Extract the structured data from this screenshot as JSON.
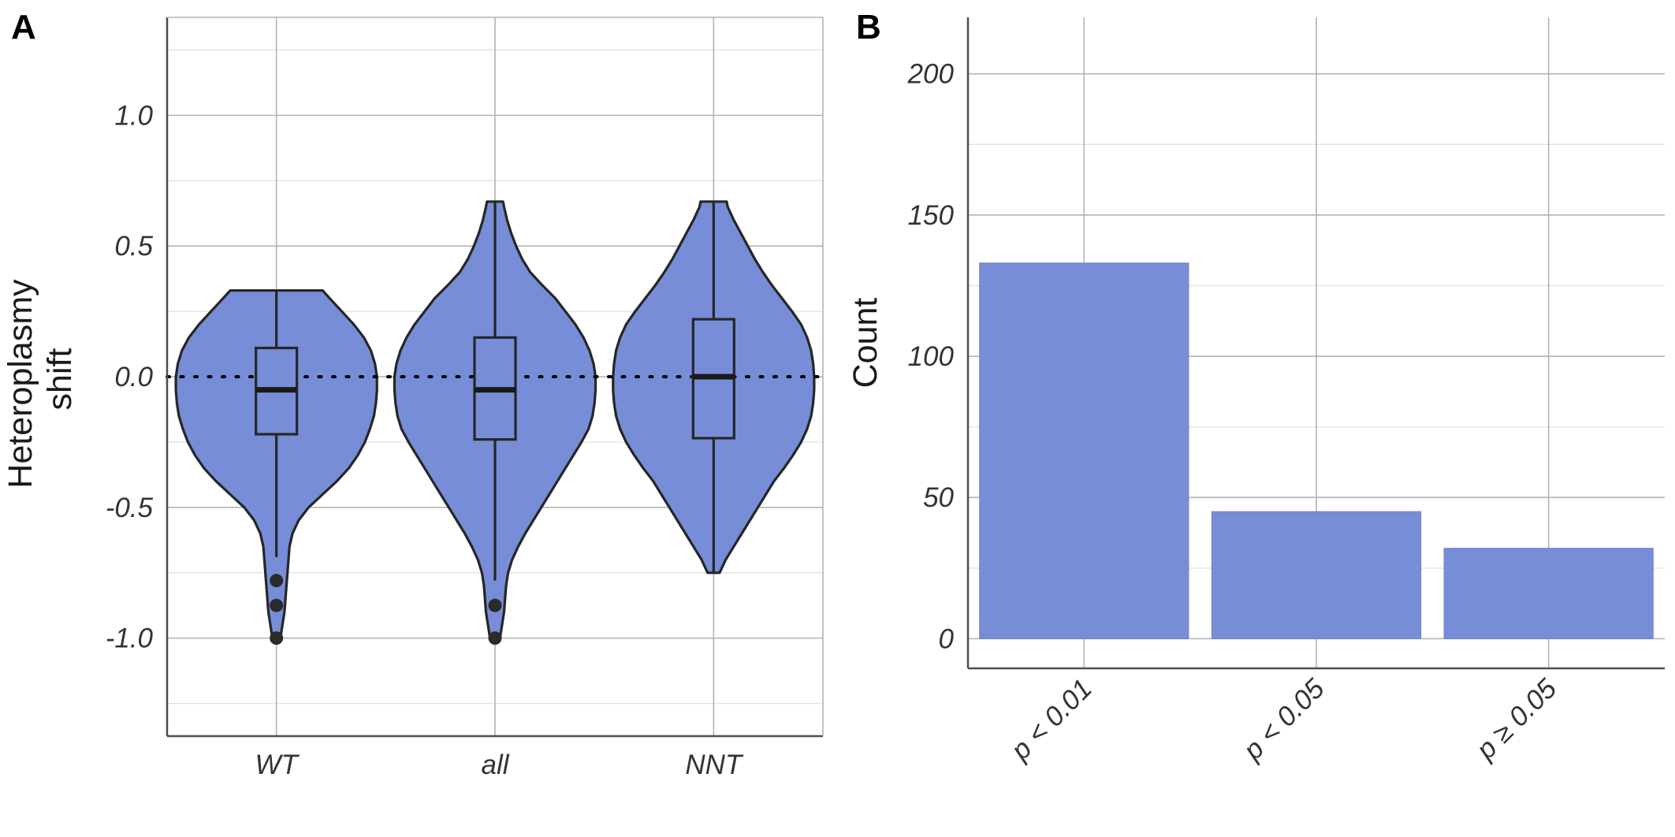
{
  "panels": {
    "a": "A",
    "b": "B"
  },
  "colors": {
    "fill": "#778dd7",
    "outline": "#262626"
  },
  "chart_data": [
    {
      "type": "violin",
      "ylabel_line1": "Heteroplasmy",
      "ylabel_line2": "shift",
      "xlabel": "",
      "categories": [
        "WT",
        "all",
        "NNT"
      ],
      "ylim": [
        -1.375,
        1.375
      ],
      "yticks": [
        -1.0,
        -0.5,
        0.0,
        0.5,
        1.0
      ],
      "ytick_labels": [
        "-1.0",
        "-0.5",
        "0.0",
        "0.5",
        "1.0"
      ],
      "reference_line": 0.0,
      "grid": true,
      "boxes": [
        {
          "name": "WT",
          "q1": -0.22,
          "median": -0.05,
          "q3": 0.11,
          "whisker_low": -0.69,
          "whisker_high": 0.33,
          "outliers": [
            -0.78,
            -0.875,
            -1.0
          ]
        },
        {
          "name": "all",
          "q1": -0.24,
          "median": -0.05,
          "q3": 0.15,
          "whisker_low": -0.78,
          "whisker_high": 0.67,
          "outliers": [
            -0.875,
            -1.0
          ]
        },
        {
          "name": "NNT",
          "q1": -0.235,
          "median": 0.0,
          "q3": 0.22,
          "whisker_low": -0.75,
          "whisker_high": 0.67,
          "outliers": []
        }
      ],
      "violins": [
        {
          "name": "WT",
          "profile": [
            [
              -1.0,
              0.04
            ],
            [
              -0.95,
              0.06
            ],
            [
              -0.9,
              0.08
            ],
            [
              -0.85,
              0.09
            ],
            [
              -0.8,
              0.1
            ],
            [
              -0.75,
              0.11
            ],
            [
              -0.7,
              0.12
            ],
            [
              -0.65,
              0.13
            ],
            [
              -0.6,
              0.16
            ],
            [
              -0.55,
              0.22
            ],
            [
              -0.5,
              0.32
            ],
            [
              -0.45,
              0.46
            ],
            [
              -0.4,
              0.6
            ],
            [
              -0.35,
              0.72
            ],
            [
              -0.3,
              0.81
            ],
            [
              -0.25,
              0.88
            ],
            [
              -0.2,
              0.93
            ],
            [
              -0.15,
              0.97
            ],
            [
              -0.1,
              0.99
            ],
            [
              -0.05,
              1.0
            ],
            [
              0.0,
              1.0
            ],
            [
              0.05,
              0.98
            ],
            [
              0.1,
              0.94
            ],
            [
              0.15,
              0.87
            ],
            [
              0.2,
              0.77
            ],
            [
              0.25,
              0.65
            ],
            [
              0.3,
              0.53
            ],
            [
              0.33,
              0.46
            ]
          ]
        },
        {
          "name": "all",
          "profile": [
            [
              -1.0,
              0.05
            ],
            [
              -0.95,
              0.07
            ],
            [
              -0.9,
              0.09
            ],
            [
              -0.85,
              0.1
            ],
            [
              -0.8,
              0.11
            ],
            [
              -0.75,
              0.13
            ],
            [
              -0.7,
              0.17
            ],
            [
              -0.65,
              0.23
            ],
            [
              -0.6,
              0.3
            ],
            [
              -0.55,
              0.38
            ],
            [
              -0.5,
              0.46
            ],
            [
              -0.45,
              0.54
            ],
            [
              -0.4,
              0.62
            ],
            [
              -0.35,
              0.7
            ],
            [
              -0.3,
              0.78
            ],
            [
              -0.25,
              0.86
            ],
            [
              -0.2,
              0.93
            ],
            [
              -0.15,
              0.97
            ],
            [
              -0.1,
              0.99
            ],
            [
              -0.05,
              1.0
            ],
            [
              0.0,
              1.0
            ],
            [
              0.05,
              0.98
            ],
            [
              0.1,
              0.94
            ],
            [
              0.15,
              0.88
            ],
            [
              0.2,
              0.8
            ],
            [
              0.25,
              0.7
            ],
            [
              0.3,
              0.6
            ],
            [
              0.35,
              0.47
            ],
            [
              0.4,
              0.35
            ],
            [
              0.45,
              0.27
            ],
            [
              0.5,
              0.21
            ],
            [
              0.55,
              0.16
            ],
            [
              0.6,
              0.12
            ],
            [
              0.65,
              0.09
            ],
            [
              0.67,
              0.08
            ]
          ]
        },
        {
          "name": "NNT",
          "profile": [
            [
              -0.75,
              0.06
            ],
            [
              -0.7,
              0.12
            ],
            [
              -0.65,
              0.2
            ],
            [
              -0.6,
              0.28
            ],
            [
              -0.55,
              0.36
            ],
            [
              -0.5,
              0.44
            ],
            [
              -0.45,
              0.52
            ],
            [
              -0.4,
              0.6
            ],
            [
              -0.35,
              0.7
            ],
            [
              -0.3,
              0.79
            ],
            [
              -0.25,
              0.87
            ],
            [
              -0.2,
              0.93
            ],
            [
              -0.15,
              0.97
            ],
            [
              -0.1,
              0.99
            ],
            [
              -0.05,
              1.0
            ],
            [
              0.0,
              1.0
            ],
            [
              0.05,
              0.99
            ],
            [
              0.1,
              0.97
            ],
            [
              0.15,
              0.93
            ],
            [
              0.2,
              0.87
            ],
            [
              0.25,
              0.78
            ],
            [
              0.3,
              0.68
            ],
            [
              0.35,
              0.58
            ],
            [
              0.4,
              0.49
            ],
            [
              0.45,
              0.41
            ],
            [
              0.5,
              0.34
            ],
            [
              0.55,
              0.27
            ],
            [
              0.6,
              0.2
            ],
            [
              0.65,
              0.14
            ],
            [
              0.67,
              0.13
            ]
          ]
        }
      ]
    },
    {
      "type": "bar",
      "ylabel": "Count",
      "xlabel": "",
      "categories": [
        "p < 0.01",
        "p < 0.05",
        "p ≥ 0.05"
      ],
      "values": [
        133,
        45,
        32
      ],
      "ylim": [
        -10.5,
        220
      ],
      "yticks": [
        0,
        50,
        100,
        150,
        200
      ],
      "ytick_labels": [
        "0",
        "50",
        "100",
        "150",
        "200"
      ],
      "grid": true
    }
  ]
}
